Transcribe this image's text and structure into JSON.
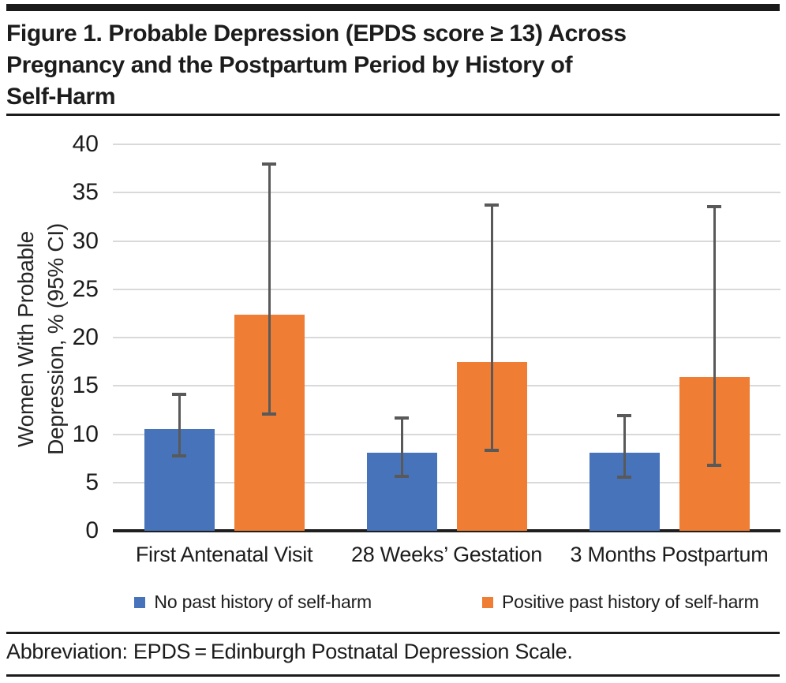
{
  "title_lines": [
    "Figure 1. Probable Depression (EPDS score ≥ 13) Across",
    "Pregnancy and the Postpartum Period by History of",
    "Self-Harm"
  ],
  "footnote": "Abbreviation: EPDS = Edinburgh Postnatal Depression Scale.",
  "chart_data": {
    "type": "bar",
    "title": "Figure 1. Probable Depression (EPDS score ≥ 13) Across Pregnancy and the Postpartum Period by History of Self-Harm",
    "categories": [
      "First Antenatal Visit",
      "28 Weeks’ Gestation",
      "3 Months Postpartum"
    ],
    "series": [
      {
        "name": "No past history of self-harm",
        "color": "#4673B9",
        "values": [
          10.5,
          8.1,
          8.1
        ],
        "ci_low": [
          7.6,
          5.5,
          5.4
        ],
        "ci_high": [
          14.3,
          11.8,
          12.1
        ]
      },
      {
        "name": "Positive past history of self-harm",
        "color": "#EF7D33",
        "values": [
          22.4,
          17.5,
          15.9
        ],
        "ci_low": [
          11.9,
          8.2,
          6.6
        ],
        "ci_high": [
          38.1,
          33.9,
          33.7
        ]
      }
    ],
    "ylabel_lines": [
      "Women With Probable",
      "Depression, % (95% CI)"
    ],
    "ylabel": "Women With Probable Depression, % (95% CI)",
    "xlabel": "",
    "yticks": [
      0,
      5,
      10,
      15,
      20,
      25,
      30,
      35,
      40
    ],
    "ylim": [
      0,
      40
    ],
    "grid": true,
    "error_bars": "95% CI",
    "legend_position": "bottom",
    "colors": {
      "gridline": "#d9d9d9",
      "axis": "#1f1f1f",
      "error_bar": "#595959"
    }
  }
}
